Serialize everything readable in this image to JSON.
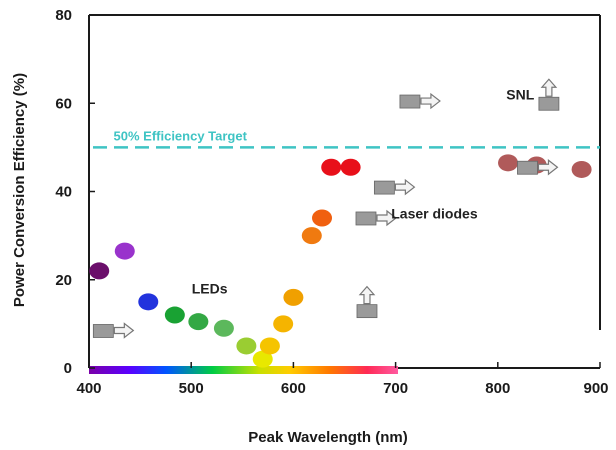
{
  "chart_data": {
    "type": "scatter",
    "xlabel": "Peak Wavelength (nm)",
    "ylabel": "Power Conversion Efficiency (%)",
    "xlim": [
      400,
      900
    ],
    "ylim": [
      0,
      80
    ],
    "x_ticks": [
      "400",
      "500",
      "600",
      "700",
      "800",
      "900"
    ],
    "y_ticks": [
      "0",
      "20",
      "40",
      "60",
      "80"
    ],
    "grid": false,
    "colors": {
      "target_line": "#3fc4c4",
      "arrow_marker": "#9a9a9a"
    },
    "target_line": {
      "y": 50,
      "label": "50% Efficiency Target"
    },
    "annotations": [
      {
        "text": "LEDs",
        "x": 518,
        "y": 18
      },
      {
        "text": "Laser diodes",
        "x": 738,
        "y": 35
      },
      {
        "text": "SNL",
        "x": 822,
        "y": 62
      }
    ],
    "series": [
      {
        "values": [
          {
            "x": 410,
            "y": 22,
            "color": "#6b0f6b"
          },
          {
            "x": 435,
            "y": 26.5,
            "color": "#9933cc"
          },
          {
            "x": 458,
            "y": 15,
            "color": "#2233dd"
          },
          {
            "x": 484,
            "y": 12,
            "color": "#19a233"
          },
          {
            "x": 507,
            "y": 10.5,
            "color": "#33a844"
          },
          {
            "x": 532,
            "y": 9,
            "color": "#5cb85c"
          },
          {
            "x": 554,
            "y": 5,
            "color": "#9acd32"
          },
          {
            "x": 570,
            "y": 2,
            "color": "#e8e800"
          },
          {
            "x": 577,
            "y": 5,
            "color": "#f5c400"
          },
          {
            "x": 590,
            "y": 10,
            "color": "#f5b400"
          },
          {
            "x": 600,
            "y": 16,
            "color": "#f0a000"
          },
          {
            "x": 618,
            "y": 30,
            "color": "#f07a10"
          },
          {
            "x": 628,
            "y": 34,
            "color": "#f06010"
          },
          {
            "x": 637,
            "y": 45.5,
            "color": "#e8101a"
          },
          {
            "x": 656,
            "y": 45.5,
            "color": "#e8101a"
          },
          {
            "x": 810,
            "y": 46.5,
            "color": "#b05a5a"
          },
          {
            "x": 838,
            "y": 46,
            "color": "#b05a5a"
          },
          {
            "x": 882,
            "y": 45,
            "color": "#b05a5a"
          }
        ]
      },
      {
        "marker": "arrow-right",
        "values": [
          {
            "x": 415,
            "y": 8.5
          },
          {
            "x": 672,
            "y": 34
          },
          {
            "x": 690,
            "y": 41
          },
          {
            "x": 715,
            "y": 60.5
          },
          {
            "x": 830,
            "y": 45.5
          }
        ]
      },
      {
        "marker": "arrow-up",
        "values": [
          {
            "x": 672,
            "y": 13
          },
          {
            "x": 850,
            "y": 60
          }
        ]
      }
    ]
  }
}
